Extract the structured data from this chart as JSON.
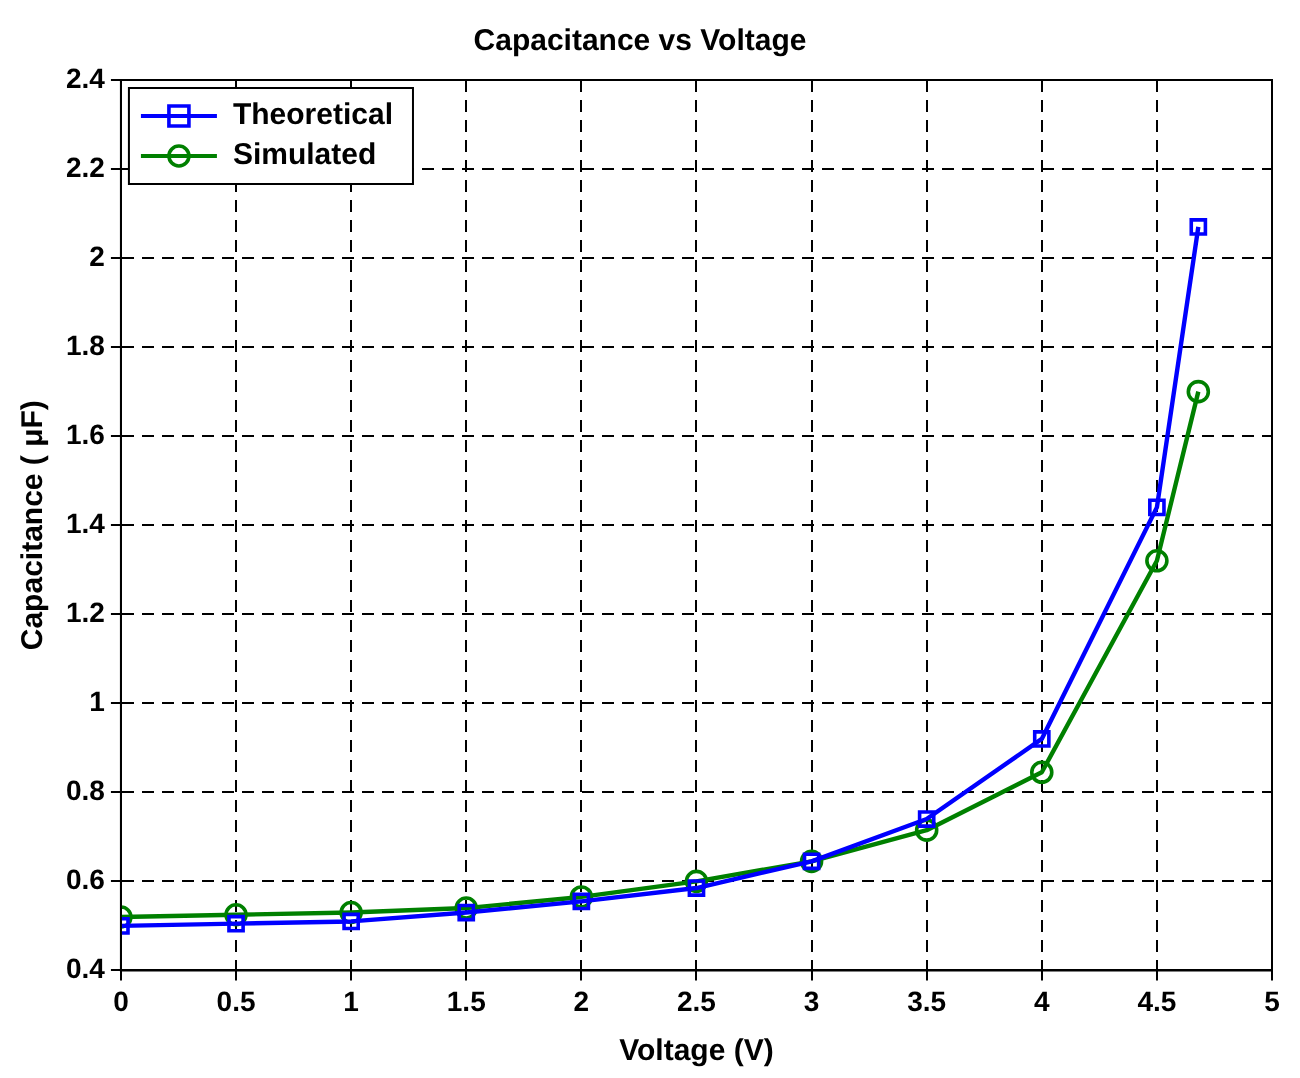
{
  "chart_data": {
    "type": "line",
    "title": "Capacitance vs Voltage",
    "xlabel": "Voltage (V)",
    "ylabel": "Capacitance ( μF)",
    "x": [
      0,
      0.5,
      1,
      1.5,
      2,
      2.5,
      3,
      3.5,
      4,
      4.5,
      4.68
    ],
    "series": [
      {
        "name": "Theoretical",
        "color": "#0000ff",
        "marker": "square",
        "values": [
          0.5,
          0.505,
          0.51,
          0.53,
          0.555,
          0.585,
          0.645,
          0.74,
          0.92,
          1.44,
          2.07
        ]
      },
      {
        "name": "Simulated",
        "color": "#008000",
        "marker": "circle",
        "values": [
          0.52,
          0.525,
          0.53,
          0.54,
          0.565,
          0.6,
          0.645,
          0.715,
          0.845,
          1.32,
          1.7
        ]
      }
    ],
    "xlim": [
      0,
      5
    ],
    "xticks": [
      0,
      0.5,
      1,
      1.5,
      2,
      2.5,
      3,
      3.5,
      4,
      4.5,
      5
    ],
    "ylim": [
      0.4,
      2.4
    ],
    "yticks": [
      0.4,
      0.6,
      0.8,
      1,
      1.2,
      1.4,
      1.6,
      1.8,
      2,
      2.2,
      2.4
    ],
    "grid": true,
    "legend": "top left",
    "line_style": "solid"
  }
}
